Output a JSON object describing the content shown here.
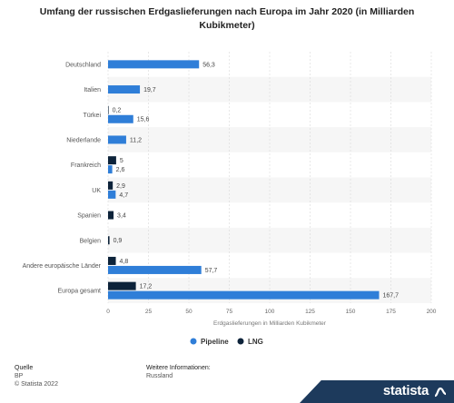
{
  "chart_data": {
    "type": "bar",
    "orientation": "horizontal",
    "title": "Umfang der russischen Erdgaslieferungen nach Europa im Jahr 2020 (in Milliarden Kubikmeter)",
    "xlabel": "Erdgaslieferungen in Milliarden Kubikmeter",
    "ylabel": "",
    "xlim": [
      0,
      200
    ],
    "xticks": [
      0,
      25,
      50,
      75,
      100,
      125,
      150,
      175,
      200
    ],
    "categories": [
      "Deutschland",
      "Italien",
      "Türkei",
      "Niederlande",
      "Frankreich",
      "UK",
      "Spanien",
      "Belgien",
      "Andere europäische Länder",
      "Europa gesamt"
    ],
    "series": [
      {
        "name": "Pipeline",
        "color": "#2f7ed8",
        "values": [
          56.3,
          19.7,
          15.6,
          11.2,
          2.6,
          4.7,
          null,
          null,
          57.7,
          167.7
        ],
        "labels": [
          "56,3",
          "19,7",
          "15,6",
          "11,2",
          "2,6",
          "4,7",
          "",
          "",
          "57,7",
          "167,7"
        ]
      },
      {
        "name": "LNG",
        "color": "#0d233a",
        "values": [
          null,
          null,
          0.2,
          null,
          5,
          2.9,
          3.4,
          0.9,
          4.8,
          17.2
        ],
        "labels": [
          "",
          "",
          "0,2",
          "",
          "5",
          "2,9",
          "3,4",
          "0,9",
          "4,8",
          "17,2"
        ]
      }
    ],
    "grid": true,
    "legend_position": "bottom-center"
  },
  "footer": {
    "source_heading": "Quelle",
    "source_name": "BP",
    "copyright": "© Statista 2022",
    "info_heading": "Weitere Informationen:",
    "info_value": "Russland"
  },
  "brand": {
    "name": "statista"
  }
}
